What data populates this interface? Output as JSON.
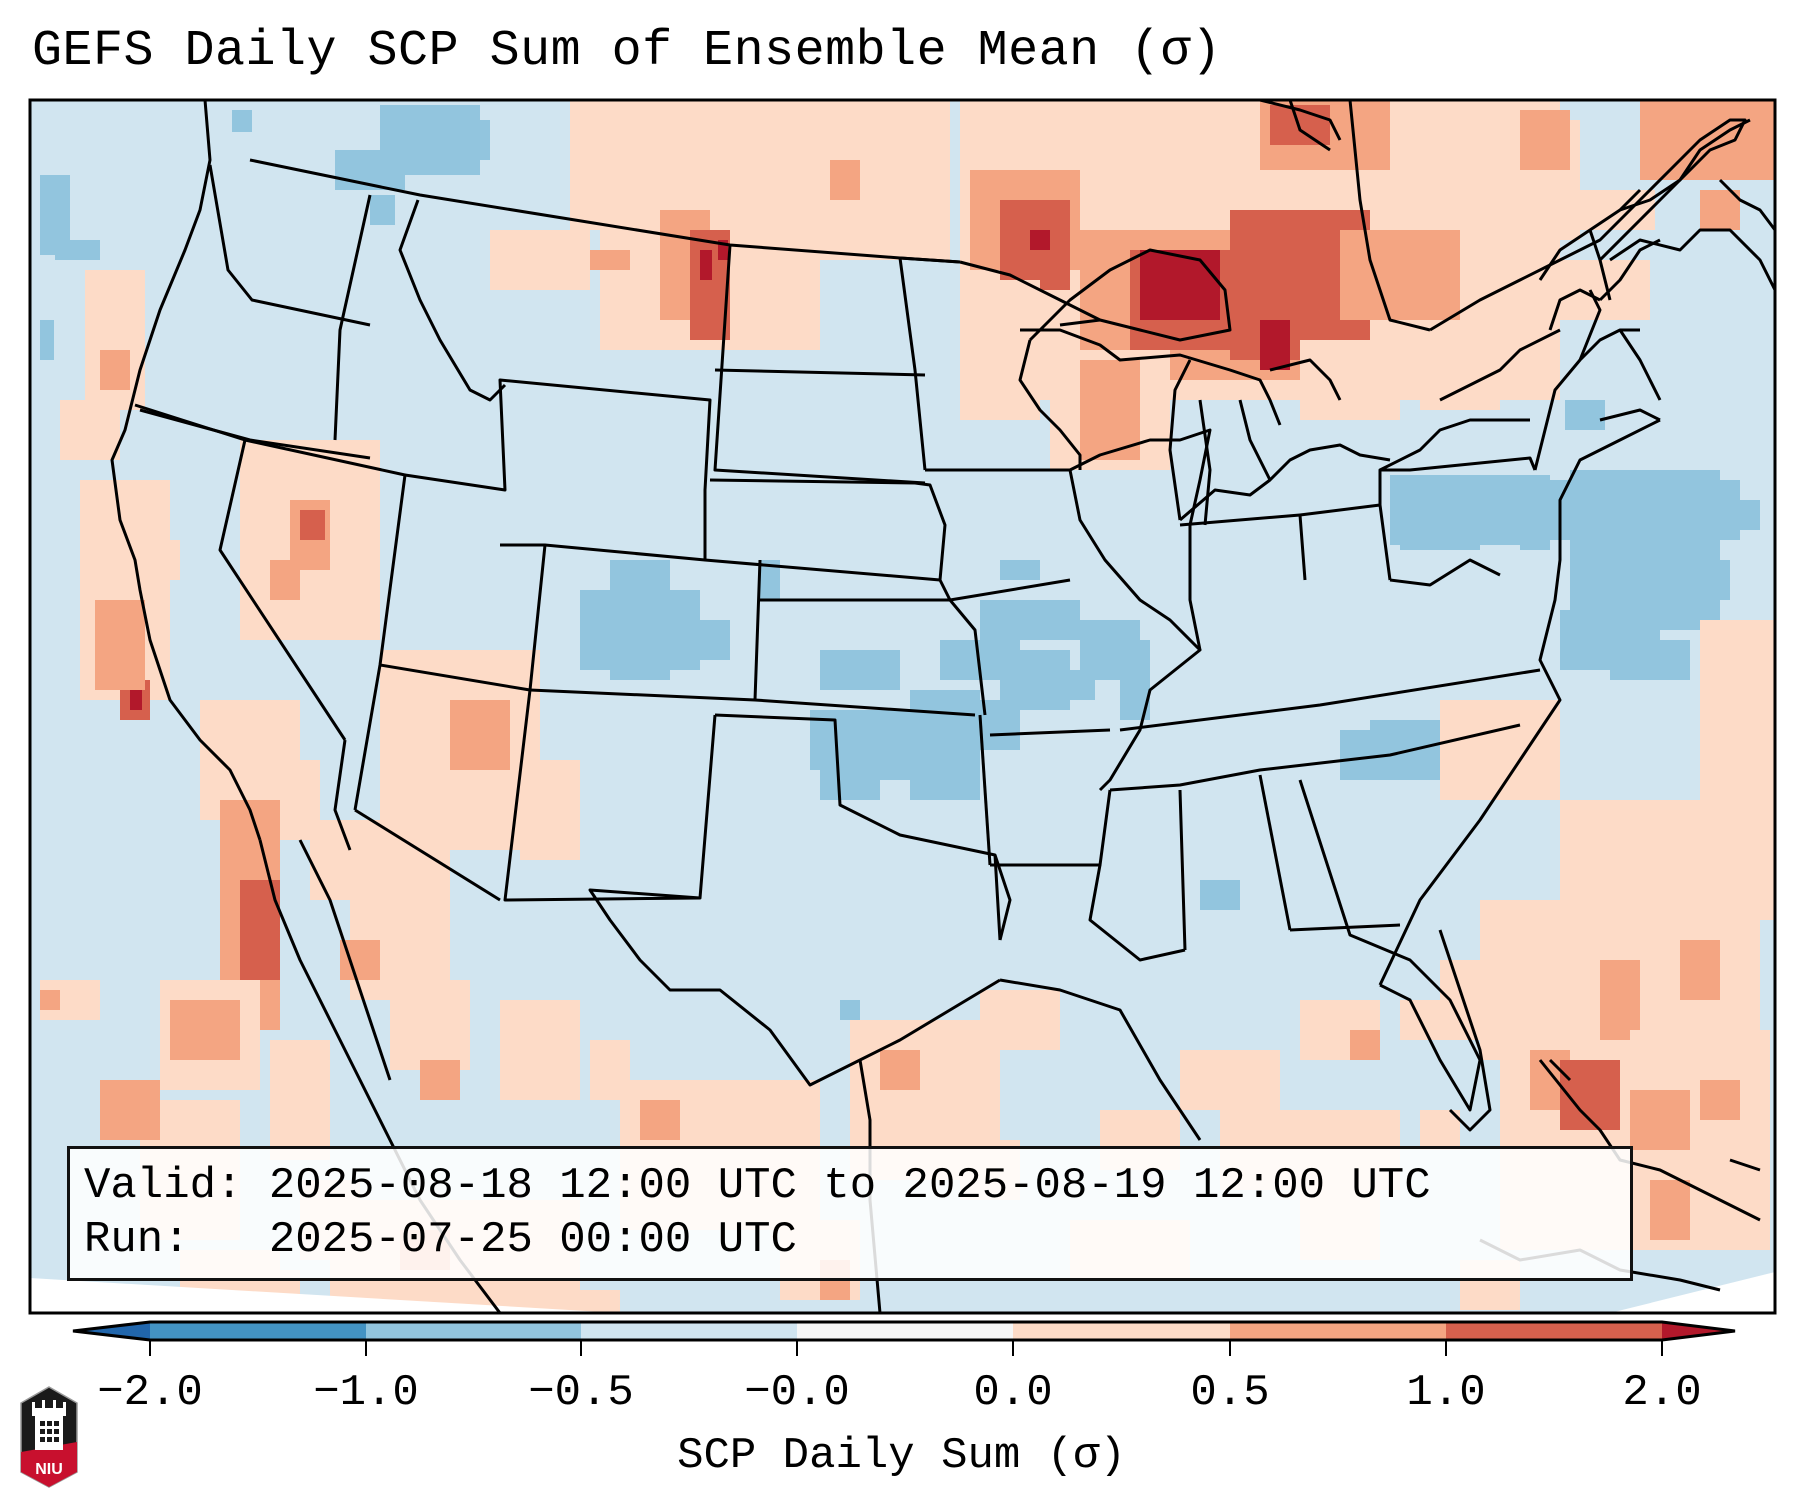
{
  "title": "GEFS Daily SCP Sum of Ensemble Mean (σ)",
  "info": {
    "valid_line": "Valid: 2025-08-18 12:00 UTC to 2025-08-19 12:00 UTC",
    "run_line": "Run:   2025-07-25 00:00 UTC"
  },
  "colorbar": {
    "title": "SCP Daily Sum (σ)",
    "ticks": [
      "−2.0",
      "−1.0",
      "−0.5",
      "−0.0",
      "0.0",
      "0.5",
      "1.0",
      "2.0"
    ],
    "under_color": "#2166ac",
    "over_color": "#b2182b",
    "bins": [
      {
        "from": "-2.0",
        "to": "-1.0",
        "color": "#4393c3"
      },
      {
        "from": "-1.0",
        "to": "-0.5",
        "color": "#92c5de"
      },
      {
        "from": "-0.5",
        "to": "-0.0",
        "color": "#d1e5f0"
      },
      {
        "from": "-0.0",
        "to": "0.0",
        "color": "#f7f7f7"
      },
      {
        "from": "0.0",
        "to": "0.5",
        "color": "#fddbc7"
      },
      {
        "from": "0.5",
        "to": "1.0",
        "color": "#f4a582"
      },
      {
        "from": "1.0",
        "to": "2.0",
        "color": "#d6604d"
      }
    ]
  },
  "map": {
    "background_level": "-0.5 to -0.0",
    "border_color": "#000000"
  },
  "logo": {
    "text": "NIU",
    "colors": {
      "shield": "#1a1a1a",
      "accent": "#c8102e"
    }
  }
}
